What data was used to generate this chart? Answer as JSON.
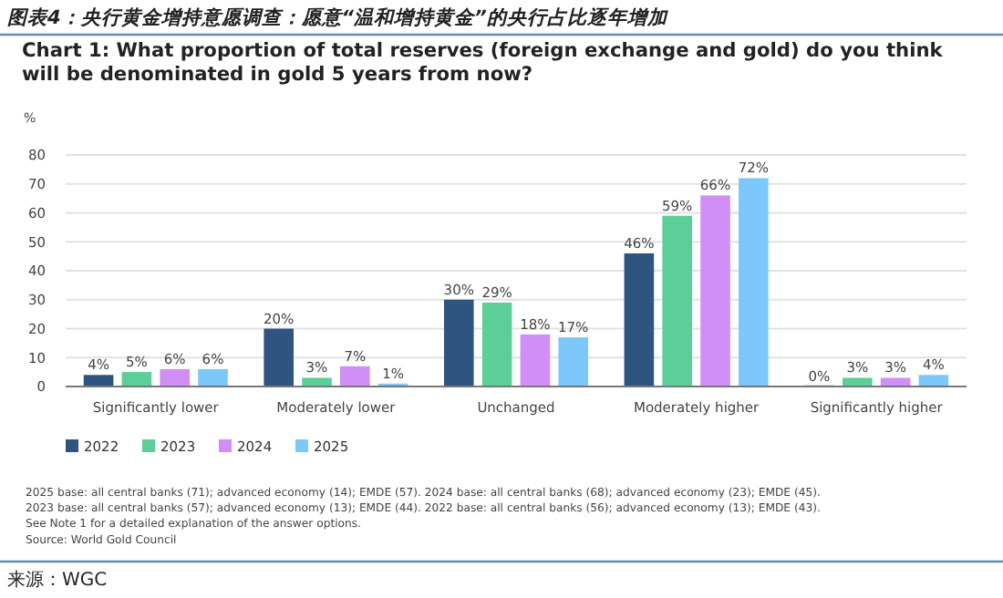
{
  "chart_data": {
    "type": "bar",
    "title": "图表4：央行黄金增持意愿调查：愿意“温和增持黄金”的央行占比逐年增加",
    "subtitle": "Chart 1: What proportion of total reserves (foreign exchange and gold) do you think will be denominated in gold 5 years from now?",
    "ylabel": "%",
    "categories": [
      "Significantly lower",
      "Moderately lower",
      "Unchanged",
      "Moderately higher",
      "Significantly higher"
    ],
    "series": [
      {
        "name": "2022",
        "color": "#2e5580",
        "values": [
          4,
          20,
          30,
          46,
          0
        ],
        "value_labels": [
          "4%",
          "20%",
          "30%",
          "46%",
          "0%"
        ]
      },
      {
        "name": "2023",
        "color": "#5ccf98",
        "values": [
          5,
          3,
          29,
          59,
          3
        ],
        "value_labels": [
          "5%",
          "3%",
          "29%",
          "59%",
          "3%"
        ]
      },
      {
        "name": "2024",
        "color": "#d18ef7",
        "values": [
          6,
          7,
          18,
          66,
          3
        ],
        "value_labels": [
          "6%",
          "7%",
          "18%",
          "66%",
          "3%"
        ]
      },
      {
        "name": "2025",
        "color": "#7cc8fb",
        "values": [
          6,
          1,
          17,
          72,
          4
        ],
        "value_labels": [
          "6%",
          "1%",
          "17%",
          "72%",
          "4%"
        ]
      }
    ],
    "ylim": [
      0,
      80
    ],
    "yticks": [
      0,
      10,
      20,
      30,
      40,
      50,
      60,
      70,
      80
    ],
    "grid": "y",
    "legend": "bottom left",
    "annotations": [
      "2025 base: all central banks (71); advanced economy (14); EMDE (57). 2024 base: all central banks (68); advanced economy (23); EMDE (45).",
      "2023 base: all central banks (57); advanced economy (13); EMDE (44). 2022 base: all central banks (56); advanced economy (13); EMDE (43).",
      "See Note 1 for a detailed explanation of the answer options.",
      "Source: World Gold Council",
      "来源：WGC"
    ]
  }
}
